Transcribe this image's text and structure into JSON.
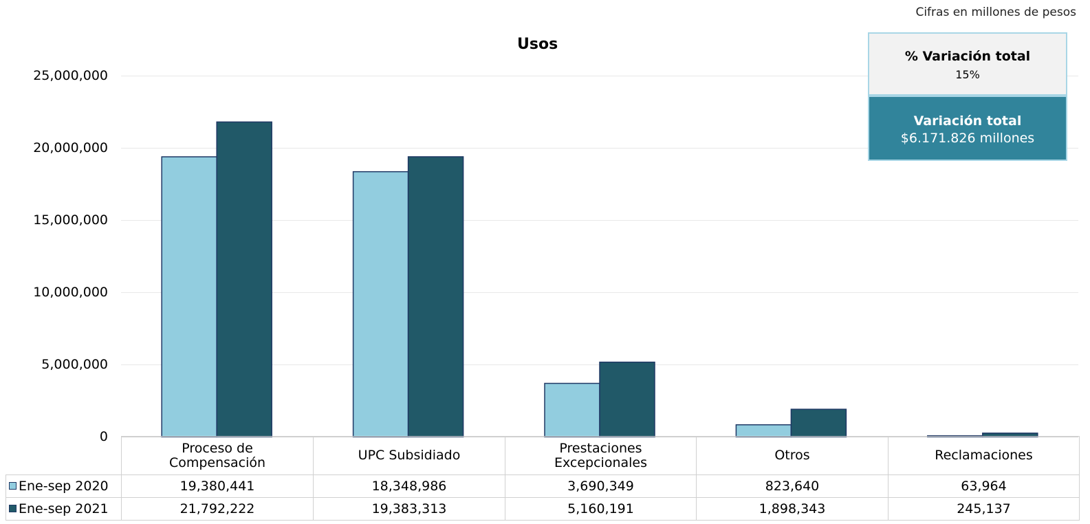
{
  "note": "Cifras en millones de pesos",
  "kpis": {
    "pct_label": "% Variación total",
    "pct_value": "15%",
    "total_label": "Variación total",
    "total_value": "$6.171.826 millones"
  },
  "colors": {
    "series1": "#92cddf",
    "series2": "#215968",
    "edge": "#1f3864"
  },
  "chart_data": {
    "type": "bar",
    "title": "Usos",
    "ylim": [
      0,
      25000000
    ],
    "yticks": [
      "0",
      "5,000,000",
      "10,000,000",
      "15,000,000",
      "20,000,000",
      "25,000,000"
    ],
    "grid": true,
    "categories": [
      "Proceso de Compensación",
      "UPC Subsidiado",
      "Prestaciones Excepcionales",
      "Otros",
      "Reclamaciones"
    ],
    "category_lines": [
      [
        "Proceso de",
        "Compensación"
      ],
      [
        "UPC Subsidiado"
      ],
      [
        "Prestaciones",
        "Excepcionales"
      ],
      [
        "Otros"
      ],
      [
        "Reclamaciones"
      ]
    ],
    "series": [
      {
        "name": "Ene-sep 2020",
        "values": [
          19380441,
          18348986,
          3690349,
          823640,
          63964
        ],
        "labels": [
          "19,380,441",
          "18,348,986",
          "3,690,349",
          "823,640",
          "63,964"
        ]
      },
      {
        "name": "Ene-sep 2021",
        "values": [
          21792222,
          19383313,
          5160191,
          1898343,
          245137
        ],
        "labels": [
          "21,792,222",
          "19,383,313",
          "5,160,191",
          "1,898,343",
          "245,137"
        ]
      }
    ]
  }
}
